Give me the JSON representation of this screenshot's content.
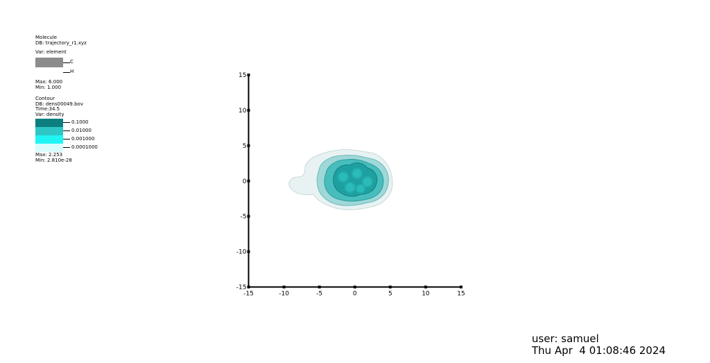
{
  "legend_molecule": {
    "title": "Molecule",
    "db": "DB: trajectory_r1.xyz",
    "var": "Var: element",
    "items": [
      {
        "label": "C",
        "color": "#8c8c8c"
      },
      {
        "label": "H",
        "color": "#ffffff"
      }
    ],
    "max": "Max:  6.000",
    "min": "Min:  1.000"
  },
  "legend_contour": {
    "title": "Contour",
    "db": "DB: dens00049.bov",
    "time": "Time:34.5",
    "var": "Var: density",
    "levels": [
      {
        "label": "0.1000",
        "color": "#0e7f80"
      },
      {
        "label": "0.01000",
        "color": "#2fc7c5"
      },
      {
        "label": "0.001000",
        "color": "#1ff5f5"
      },
      {
        "label": "0.0001000",
        "color": "#d8fcfc"
      }
    ],
    "max": "Max:  2.253",
    "min": "Min:  2.810e-28"
  },
  "chart_data": {
    "type": "contour",
    "title": "",
    "xlabel": "",
    "ylabel": "",
    "xlim": [
      -15,
      15
    ],
    "ylim": [
      -15,
      15
    ],
    "xticks": [
      -15,
      -10,
      -5,
      0,
      5,
      10,
      15
    ],
    "yticks": [
      -15,
      -10,
      -5,
      0,
      5,
      10,
      15
    ],
    "xtick_labels": [
      "-15",
      "-10",
      "-5",
      "0",
      "5",
      "10",
      "15"
    ],
    "ytick_labels": [
      "15",
      "10",
      "5",
      "0",
      "-5",
      "-10",
      "-15"
    ],
    "contour_levels": [
      0.1,
      0.01,
      0.001,
      0.0001
    ],
    "grid": false
  },
  "footer": {
    "user": "user: samuel",
    "date": "Thu Apr  4 01:08:46 2024"
  }
}
